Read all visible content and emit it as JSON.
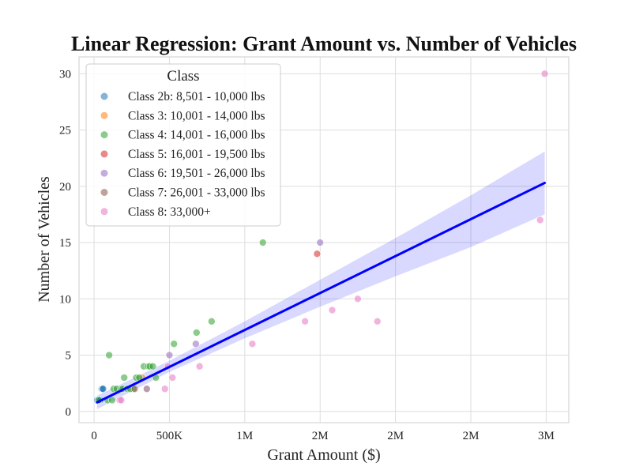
{
  "chart_data": {
    "type": "scatter",
    "title": "Linear Regression: Grant Amount vs. Number of Vehicles",
    "xlabel": "Grant Amount ($)",
    "ylabel": "Number of Vehicles",
    "xlim": [
      -100000,
      3150000
    ],
    "ylim": [
      -1,
      31.5
    ],
    "x_ticks": [
      {
        "value": 0,
        "label": "0"
      },
      {
        "value": 500000,
        "label": "500K"
      },
      {
        "value": 1000000,
        "label": "1M"
      },
      {
        "value": 1500000,
        "label": "2M"
      },
      {
        "value": 2000000,
        "label": "2M"
      },
      {
        "value": 2500000,
        "label": "2M"
      },
      {
        "value": 3000000,
        "label": "3M"
      }
    ],
    "y_ticks": [
      {
        "value": 0,
        "label": "0"
      },
      {
        "value": 5,
        "label": "5"
      },
      {
        "value": 10,
        "label": "10"
      },
      {
        "value": 15,
        "label": "15"
      },
      {
        "value": 20,
        "label": "20"
      },
      {
        "value": 25,
        "label": "25"
      },
      {
        "value": 30,
        "label": "30"
      }
    ],
    "grid": true,
    "legend": {
      "title": "Class",
      "placement": "top-left"
    },
    "series": [
      {
        "name": "Class 2b: 8,501 - 10,000 lbs",
        "color": "#1f77b4",
        "points": [
          [
            20000,
            1
          ],
          [
            28000,
            1
          ],
          [
            35000,
            1
          ],
          [
            50000,
            2
          ],
          [
            55000,
            2
          ],
          [
            60000,
            2
          ],
          [
            42000,
            1
          ]
        ]
      },
      {
        "name": "Class 3: 10,001 - 14,000 lbs",
        "color": "#ff7f0e",
        "points": [
          [
            320000,
            3
          ]
        ]
      },
      {
        "name": "Class 4: 14,001 - 16,000 lbs",
        "color": "#2ca02c",
        "points": [
          [
            30000,
            1
          ],
          [
            90000,
            1
          ],
          [
            100000,
            5
          ],
          [
            130000,
            2
          ],
          [
            150000,
            2
          ],
          [
            180000,
            2
          ],
          [
            190000,
            2
          ],
          [
            200000,
            3
          ],
          [
            220000,
            2
          ],
          [
            260000,
            2
          ],
          [
            280000,
            3
          ],
          [
            300000,
            3
          ],
          [
            330000,
            4
          ],
          [
            350000,
            2
          ],
          [
            360000,
            4
          ],
          [
            370000,
            4
          ],
          [
            390000,
            4
          ],
          [
            410000,
            3
          ],
          [
            530000,
            6
          ],
          [
            680000,
            7
          ],
          [
            780000,
            8
          ],
          [
            1120000,
            15
          ],
          [
            120000,
            1
          ],
          [
            240000,
            2
          ]
        ]
      },
      {
        "name": "Class 5: 16,001 - 19,500 lbs",
        "color": "#d62728",
        "points": [
          [
            1480000,
            14
          ]
        ]
      },
      {
        "name": "Class 6: 19,501 - 26,000 lbs",
        "color": "#9467bd",
        "points": [
          [
            500000,
            5
          ],
          [
            675000,
            6
          ],
          [
            1500000,
            15
          ]
        ]
      },
      {
        "name": "Class 7: 26,001 - 33,000 lbs",
        "color": "#8c564b",
        "points": [
          [
            270000,
            2
          ]
        ]
      },
      {
        "name": "Class 8: 33,000+",
        "color": "#e377c2",
        "points": [
          [
            170000,
            1
          ],
          [
            180000,
            1
          ],
          [
            350000,
            2
          ],
          [
            470000,
            2
          ],
          [
            490000,
            4
          ],
          [
            520000,
            3
          ],
          [
            700000,
            4
          ],
          [
            1050000,
            6
          ],
          [
            1400000,
            8
          ],
          [
            1580000,
            9
          ],
          [
            1750000,
            10
          ],
          [
            1880000,
            8
          ],
          [
            2960000,
            17
          ],
          [
            2990000,
            30
          ]
        ]
      }
    ],
    "regression": {
      "color": "#0000ff",
      "band_color": "#0000ff",
      "line": [
        [
          20000,
          0.8
        ],
        [
          2990000,
          20.3
        ]
      ],
      "band_upper": [
        [
          20000,
          1.4
        ],
        [
          500000,
          4.5
        ],
        [
          1000000,
          8.0
        ],
        [
          1500000,
          11.7
        ],
        [
          2000000,
          15.4
        ],
        [
          2500000,
          19.2
        ],
        [
          2990000,
          23.1
        ]
      ],
      "band_lower": [
        [
          20000,
          0.2
        ],
        [
          500000,
          3.5
        ],
        [
          1000000,
          6.5
        ],
        [
          1500000,
          9.3
        ],
        [
          2000000,
          12.0
        ],
        [
          2500000,
          14.6
        ],
        [
          2990000,
          17.5
        ]
      ]
    }
  }
}
